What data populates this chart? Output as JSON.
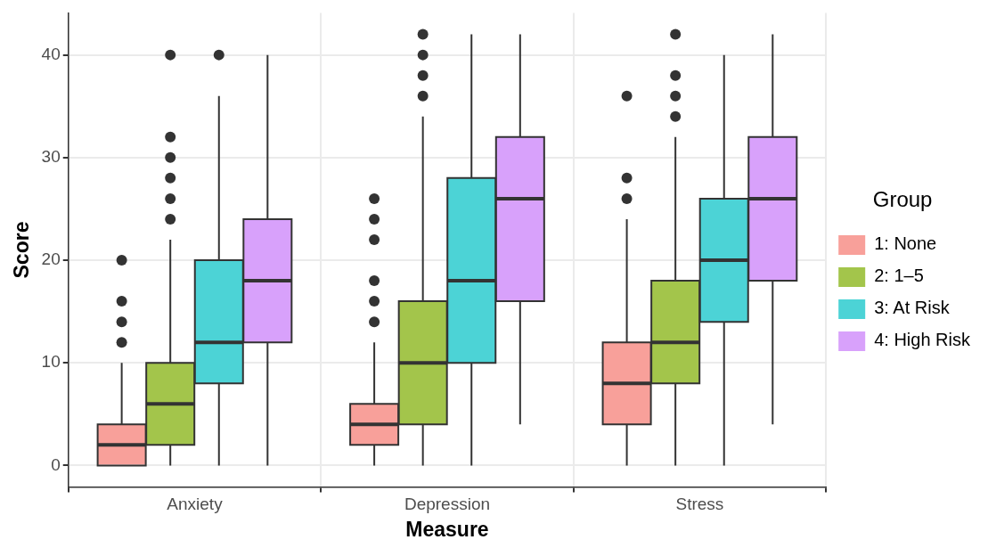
{
  "chart_data": {
    "type": "box",
    "xlabel": "Measure",
    "ylabel": "Score",
    "legend_title": "Group",
    "categories": [
      "Anxiety",
      "Depression",
      "Stress"
    ],
    "ylim": [
      -2.1,
      44.1
    ],
    "yticks": [
      0,
      10,
      20,
      30,
      40
    ],
    "grid": true,
    "legend": "right",
    "series": [
      {
        "name": "1: None",
        "color": "#f8a09a",
        "boxes": [
          {
            "low": 0,
            "q1": 0,
            "median": 2,
            "q3": 4,
            "high": 10,
            "outliers": [
              12,
              14,
              16,
              20
            ]
          },
          {
            "low": 0,
            "q1": 2,
            "median": 4,
            "q3": 6,
            "high": 12,
            "outliers": [
              14,
              16,
              18,
              22,
              24,
              26
            ]
          },
          {
            "low": 0,
            "q1": 4,
            "median": 8,
            "q3": 12,
            "high": 24,
            "outliers": [
              26,
              28,
              36
            ]
          }
        ]
      },
      {
        "name": "2: 1–5",
        "color": "#a3c54b",
        "boxes": [
          {
            "low": 0,
            "q1": 2,
            "median": 6,
            "q3": 10,
            "high": 22,
            "outliers": [
              24,
              26,
              28,
              30,
              32,
              40
            ]
          },
          {
            "low": 0,
            "q1": 4,
            "median": 10,
            "q3": 16,
            "high": 34,
            "outliers": [
              36,
              38,
              40,
              42
            ]
          },
          {
            "low": 0,
            "q1": 8,
            "median": 12,
            "q3": 18,
            "high": 32,
            "outliers": [
              34,
              36,
              38,
              42
            ]
          }
        ]
      },
      {
        "name": "3: At Risk",
        "color": "#4cd3d6",
        "boxes": [
          {
            "low": 0,
            "q1": 8,
            "median": 12,
            "q3": 20,
            "high": 36,
            "outliers": [
              40
            ]
          },
          {
            "low": 0,
            "q1": 10,
            "median": 18,
            "q3": 28,
            "high": 42
          },
          {
            "low": 0,
            "q1": 14,
            "median": 20,
            "q3": 26,
            "high": 40
          }
        ]
      },
      {
        "name": "4: High Risk",
        "color": "#d8a1fb",
        "boxes": [
          {
            "low": 0,
            "q1": 12,
            "median": 18,
            "q3": 24,
            "high": 40
          },
          {
            "low": 4,
            "q1": 16,
            "median": 26,
            "q3": 32,
            "high": 42
          },
          {
            "low": 4,
            "q1": 18,
            "median": 26,
            "q3": 32,
            "high": 42
          }
        ]
      }
    ]
  }
}
